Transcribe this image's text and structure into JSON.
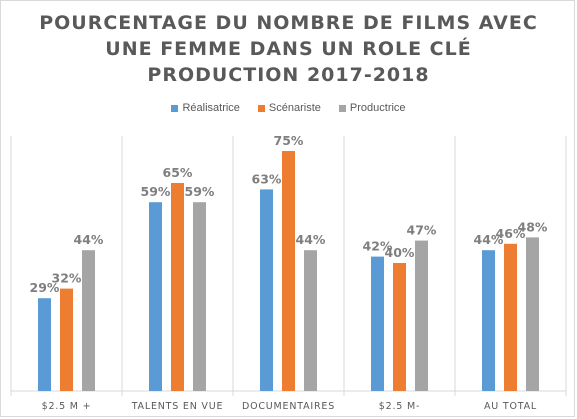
{
  "chart_data": {
    "type": "bar",
    "title_lines": [
      "POURCENTAGE DU NOMBRE DE FILMS AVEC",
      "UNE FEMME DANS UN ROLE CLÉ",
      "PRODUCTION  2017-2018"
    ],
    "categories": [
      "$2.5 M +",
      "TALENTS EN VUE",
      "DOCUMENTAIRES",
      "$2.5 M-",
      "AU TOTAL"
    ],
    "series": [
      {
        "name": "Réalisatrice",
        "color": "#5b9bd5",
        "values": [
          29,
          59,
          63,
          42,
          44
        ],
        "labels": [
          "29%",
          "59%",
          "63%",
          "42%",
          "44%"
        ]
      },
      {
        "name": "Scénariste",
        "color": "#ed7d31",
        "values": [
          32,
          65,
          75,
          40,
          46
        ],
        "labels": [
          "32%",
          "65%",
          "75%",
          "40%",
          "46%"
        ]
      },
      {
        "name": "Productrice",
        "color": "#a5a5a5",
        "values": [
          44,
          59,
          44,
          47,
          48
        ],
        "labels": [
          "44%",
          "59%",
          "44%",
          "47%",
          "48%"
        ]
      }
    ],
    "ylim": [
      0,
      80
    ],
    "grid": false,
    "category_separators": true,
    "legend_position": "top",
    "xlabel": "",
    "ylabel": ""
  }
}
